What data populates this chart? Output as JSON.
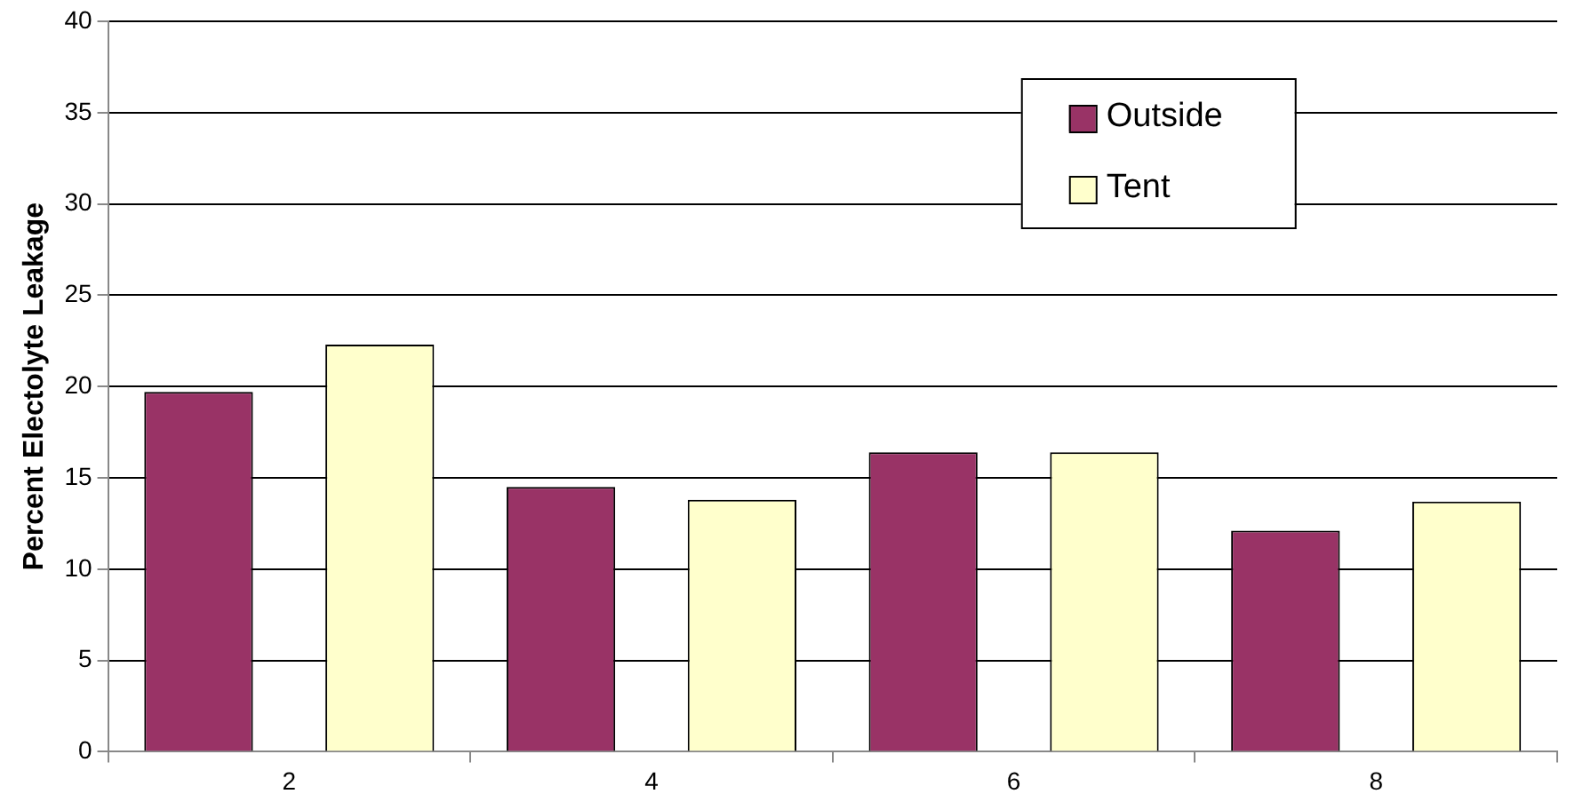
{
  "chart_data": {
    "type": "bar",
    "ylabel": "Percent Electolyte Leakage",
    "categories": [
      "2",
      "4",
      "6",
      "8"
    ],
    "series": [
      {
        "name": "Outside",
        "color": "#993366",
        "values": [
          19.7,
          14.5,
          16.4,
          12.1
        ]
      },
      {
        "name": "Tent",
        "color": "#ffffcc",
        "values": [
          22.3,
          13.8,
          16.4,
          13.7
        ]
      }
    ],
    "ylim": [
      0,
      40
    ],
    "yticks": [
      0,
      5,
      10,
      15,
      20,
      25,
      30,
      35,
      40
    ],
    "grid": "y",
    "legend": "top right"
  }
}
